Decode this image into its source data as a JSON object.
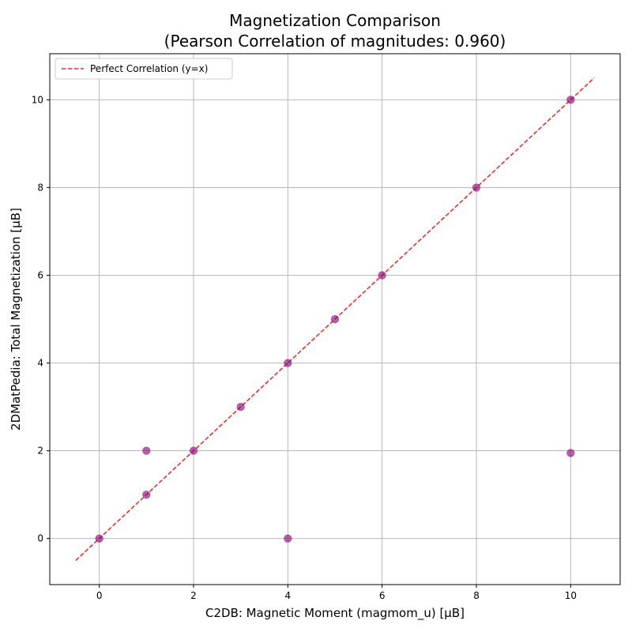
{
  "chart_data": {
    "type": "scatter",
    "title_line1": "Magnetization Comparison",
    "title_line2": "(Pearson Correlation of magnitudes: 0.960)",
    "xlabel": "C2DB: Magnetic Moment (magmom_u) [μB]",
    "ylabel": "2DMatPedia: Total Magnetization [μB]",
    "xlim": [
      -1.05,
      11.05
    ],
    "ylim": [
      -1.05,
      11.05
    ],
    "xticks": [
      0,
      2,
      4,
      6,
      8,
      10
    ],
    "yticks": [
      0,
      2,
      4,
      6,
      8,
      10
    ],
    "grid": true,
    "legend_position": "top-left",
    "colors": {
      "points": "#800080",
      "points_edge": "#c0145a",
      "reference_line": "#e8312f",
      "grid": "#b0b0b0"
    },
    "series": [
      {
        "name": "",
        "points": [
          {
            "x": 0,
            "y": 0
          },
          {
            "x": 1,
            "y": 1
          },
          {
            "x": 1,
            "y": 2
          },
          {
            "x": 2,
            "y": 2
          },
          {
            "x": 3,
            "y": 3
          },
          {
            "x": 4,
            "y": 4
          },
          {
            "x": 4,
            "y": 0
          },
          {
            "x": 5,
            "y": 5
          },
          {
            "x": 6,
            "y": 6
          },
          {
            "x": 8,
            "y": 8
          },
          {
            "x": 10,
            "y": 10
          },
          {
            "x": 10,
            "y": 1.95
          }
        ]
      }
    ],
    "reference_line": {
      "name": "Perfect Correlation (y=x)",
      "x": [
        -0.5,
        10.5
      ],
      "y": [
        -0.5,
        10.5
      ]
    }
  }
}
